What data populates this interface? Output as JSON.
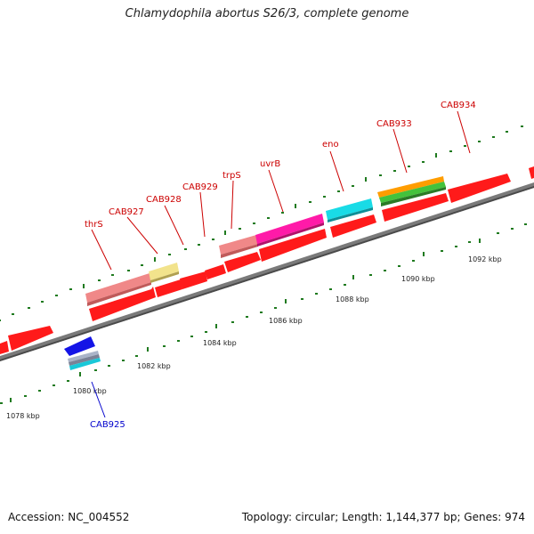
{
  "title": "Chlamydophila abortus S26/3, complete genome",
  "footer": {
    "accession": "Accession: NC_004552",
    "info": "Topology: circular; Length: 1,144,377 bp; Genes: 974"
  },
  "colors": {
    "backbone": "#7a7a7a",
    "tick": "#1f7a1f",
    "gene_default": "#ff1a1a",
    "label_forward": "#cc0000",
    "label_reverse": "#0000cc"
  },
  "kbp_ticks": [
    "1078 kbp",
    "1080 kbp",
    "1082 kbp",
    "1084 kbp",
    "1086 kbp",
    "1088 kbp",
    "1090 kbp",
    "1092 kbp"
  ],
  "gene_labels": [
    "thrS",
    "CAB927",
    "CAB928",
    "CAB929",
    "trpS",
    "uvrB",
    "eno",
    "CAB933",
    "CAB934",
    "CAB925"
  ]
}
